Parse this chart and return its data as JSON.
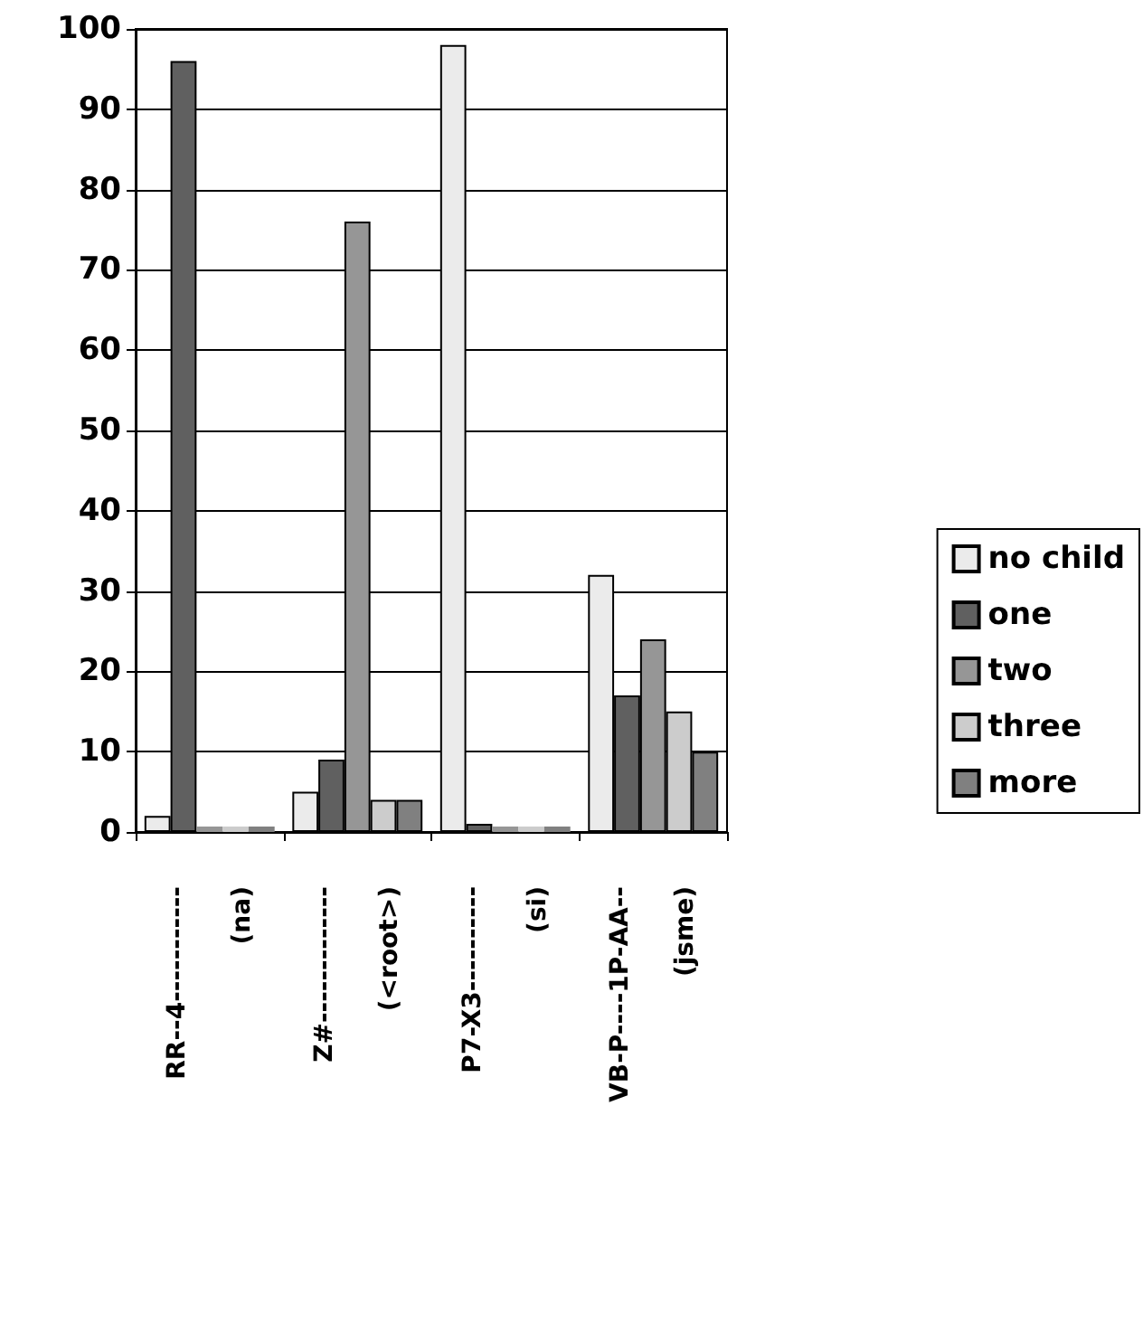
{
  "chart_data": {
    "type": "bar",
    "categories": [
      "RR--4-----------\n(na)",
      "Z#-------------\n(<root>)",
      "P7-X3----------\n(si)",
      "VB-P----1P-AA--\n(jsme)"
    ],
    "series": [
      {
        "name": "no child",
        "color": "#ebebeb",
        "values": [
          2,
          5,
          98,
          32
        ]
      },
      {
        "name": "one",
        "color": "#606060",
        "values": [
          96,
          9,
          1,
          17
        ]
      },
      {
        "name": "two",
        "color": "#969696",
        "values": [
          0,
          76,
          0,
          24
        ]
      },
      {
        "name": "three",
        "color": "#cccccc",
        "values": [
          0,
          4,
          0,
          15
        ]
      },
      {
        "name": "more",
        "color": "#808080",
        "values": [
          0,
          4,
          0,
          10
        ]
      }
    ],
    "ylim": [
      0,
      100
    ],
    "yticks": [
      0,
      10,
      20,
      30,
      40,
      50,
      60,
      70,
      80,
      90,
      100
    ],
    "grid": "y",
    "legend": "right"
  }
}
